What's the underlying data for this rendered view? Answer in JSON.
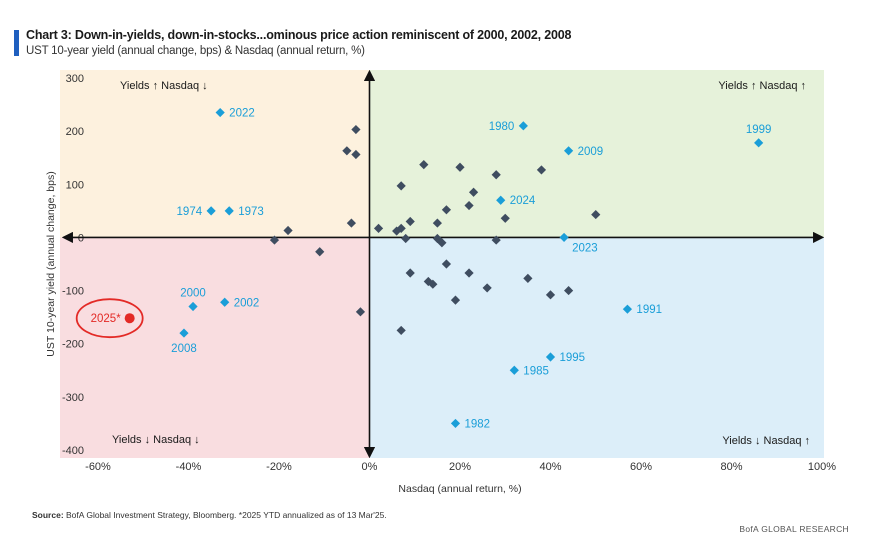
{
  "header": {
    "title": "Chart 3: Down-in-yields, down-in-stocks...ominous price action reminiscent of 2000, 2002, 2008",
    "subtitle": "UST 10-year yield (annual change, bps) & Nasdaq (annual return, %)"
  },
  "footer": {
    "source_label": "Source:",
    "source_text": " BofA Global Investment Strategy, Bloomberg. *2025 YTD annualized as of 13 Mar'25.",
    "brand": "BofA GLOBAL RESEARCH"
  },
  "chart_data": {
    "type": "scatter",
    "xlabel": "Nasdaq (annual return, %)",
    "ylabel": "UST 10-year yield (annual change, bps)",
    "xlim": [
      -60,
      100
    ],
    "ylim": [
      -400,
      300
    ],
    "xticks": [
      -60,
      -40,
      -20,
      0,
      20,
      40,
      60,
      80,
      100
    ],
    "xtick_labels": [
      "-60%",
      "-40%",
      "-20%",
      "0%",
      "20%",
      "40%",
      "60%",
      "80%",
      "100%"
    ],
    "yticks": [
      300,
      200,
      100,
      0,
      -100,
      -200,
      -300,
      -400
    ],
    "ytick_labels": [
      "300",
      "200",
      "100",
      "0",
      "-100",
      "-200",
      "-300",
      "-400"
    ],
    "quadrant_labels": {
      "top_left": "Yields ↑ Nasdaq ↓",
      "top_right": "Yields ↑ Nasdaq ↑",
      "bottom_left": "Yields ↓ Nasdaq ↓",
      "bottom_right": "Yields ↓ Nasdaq ↑"
    },
    "colors": {
      "quadrant_top_left": "#fdf1de",
      "quadrant_top_right": "#e6f2da",
      "quadrant_bottom_left": "#f9dde0",
      "quadrant_bottom_right": "#dceef9",
      "plain_point": "#3f4d60",
      "labeled_point": "#1a9ed8",
      "highlight": "#e32a26"
    },
    "labeled_points": [
      {
        "label": "2022",
        "x": -33,
        "y": 235,
        "pos": "right"
      },
      {
        "label": "1980",
        "x": 34,
        "y": 210,
        "pos": "left"
      },
      {
        "label": "2009",
        "x": 44,
        "y": 163,
        "pos": "right"
      },
      {
        "label": "1999",
        "x": 86,
        "y": 178,
        "pos": "above"
      },
      {
        "label": "1974",
        "x": -35,
        "y": 50,
        "pos": "left"
      },
      {
        "label": "1973",
        "x": -31,
        "y": 50,
        "pos": "right"
      },
      {
        "label": "2024",
        "x": 29,
        "y": 70,
        "pos": "right"
      },
      {
        "label": "2023",
        "x": 43,
        "y": 0,
        "pos": "belowright"
      },
      {
        "label": "2000",
        "x": -39,
        "y": -130,
        "pos": "above"
      },
      {
        "label": "2002",
        "x": -32,
        "y": -122,
        "pos": "right"
      },
      {
        "label": "2008",
        "x": -41,
        "y": -180,
        "pos": "below"
      },
      {
        "label": "1991",
        "x": 57,
        "y": -135,
        "pos": "right"
      },
      {
        "label": "1995",
        "x": 40,
        "y": -225,
        "pos": "right"
      },
      {
        "label": "1985",
        "x": 32,
        "y": -250,
        "pos": "right"
      },
      {
        "label": "1982",
        "x": 19,
        "y": -350,
        "pos": "right"
      }
    ],
    "highlight_point": {
      "label": "2025*",
      "x": -53,
      "y": -152
    },
    "points": [
      {
        "x": -3,
        "y": 203
      },
      {
        "x": -5,
        "y": 163
      },
      {
        "x": -3,
        "y": 156
      },
      {
        "x": 12,
        "y": 137
      },
      {
        "x": 20,
        "y": 132
      },
      {
        "x": 28,
        "y": 118
      },
      {
        "x": 38,
        "y": 127
      },
      {
        "x": 7,
        "y": 97
      },
      {
        "x": 23,
        "y": 85
      },
      {
        "x": 22,
        "y": 60
      },
      {
        "x": 17,
        "y": 52
      },
      {
        "x": 30,
        "y": 36
      },
      {
        "x": 50,
        "y": 43
      },
      {
        "x": 15,
        "y": 27
      },
      {
        "x": 9,
        "y": 30
      },
      {
        "x": -4,
        "y": 27
      },
      {
        "x": 2,
        "y": 17
      },
      {
        "x": 7,
        "y": 17
      },
      {
        "x": 6,
        "y": 12
      },
      {
        "x": -18,
        "y": 13
      },
      {
        "x": -21,
        "y": -5
      },
      {
        "x": 8,
        "y": -2
      },
      {
        "x": 15,
        "y": -2
      },
      {
        "x": 16,
        "y": -10
      },
      {
        "x": 28,
        "y": -5
      },
      {
        "x": -11,
        "y": -27
      },
      {
        "x": 17,
        "y": -50
      },
      {
        "x": 9,
        "y": -67
      },
      {
        "x": 22,
        "y": -67
      },
      {
        "x": 35,
        "y": -77
      },
      {
        "x": 13,
        "y": -83
      },
      {
        "x": 14,
        "y": -88
      },
      {
        "x": 26,
        "y": -95
      },
      {
        "x": 44,
        "y": -100
      },
      {
        "x": 40,
        "y": -108
      },
      {
        "x": 19,
        "y": -118
      },
      {
        "x": -2,
        "y": -140
      },
      {
        "x": 7,
        "y": -175
      }
    ]
  }
}
